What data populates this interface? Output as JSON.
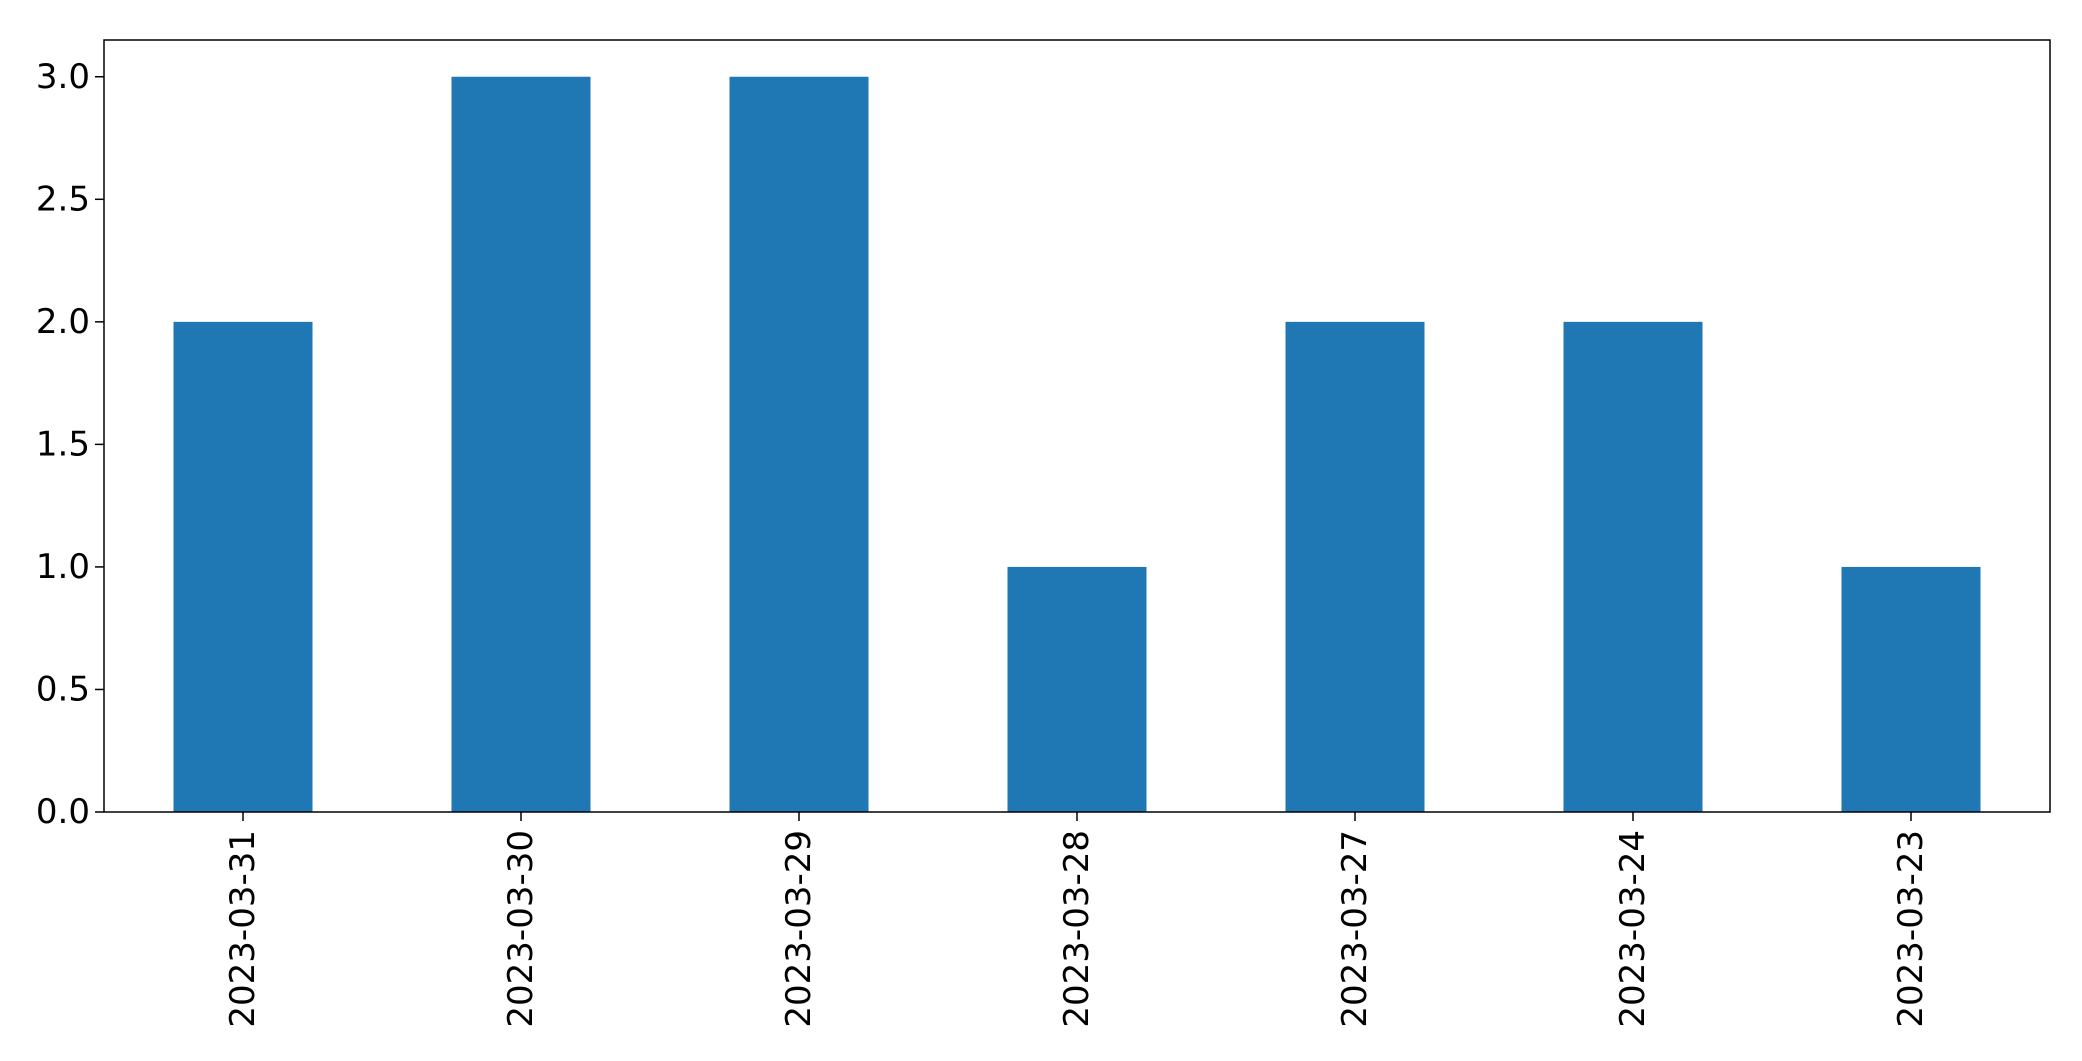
{
  "chart_data": {
    "type": "bar",
    "categories": [
      "2023-03-31",
      "2023-03-30",
      "2023-03-29",
      "2023-03-28",
      "2023-03-27",
      "2023-03-24",
      "2023-03-23"
    ],
    "values": [
      2,
      3,
      3,
      1,
      2,
      2,
      1
    ],
    "title": "",
    "xlabel": "",
    "ylabel": "",
    "ylim": [
      0,
      3.15
    ],
    "yticks": [
      "0.0",
      "0.5",
      "1.0",
      "1.5",
      "2.0",
      "2.5",
      "3.0"
    ],
    "bar_color": "#1f77b4",
    "grid": false,
    "legend": "none"
  }
}
